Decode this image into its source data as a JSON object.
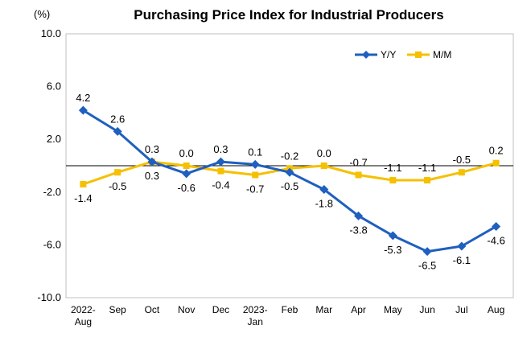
{
  "chart_data": {
    "type": "line",
    "title": "Purchasing Price Index for Industrial Producers",
    "unit": "(%)",
    "ylim": [
      -10,
      10
    ],
    "yticks": [
      "10.0",
      "6.0",
      "2.0",
      "-2.0",
      "-6.0",
      "-10.0"
    ],
    "ytick_values": [
      10,
      6,
      2,
      -2,
      -6,
      -10
    ],
    "categories": [
      [
        "2022-",
        "Aug"
      ],
      [
        "Sep"
      ],
      [
        "Oct"
      ],
      [
        "Nov"
      ],
      [
        "Dec"
      ],
      [
        "2023-",
        "Jan"
      ],
      [
        "Feb"
      ],
      [
        "Mar"
      ],
      [
        "Apr"
      ],
      [
        "May"
      ],
      [
        "Jun"
      ],
      [
        "Jul"
      ],
      [
        "Aug"
      ]
    ],
    "series": [
      {
        "name": "Y/Y",
        "color": "#1f5fbf",
        "marker": "diamond",
        "values": [
          4.2,
          2.6,
          0.3,
          -0.6,
          0.3,
          0.1,
          -0.5,
          -1.8,
          -3.8,
          -5.3,
          -6.5,
          -6.1,
          -4.6
        ],
        "labels": [
          "4.2",
          "2.6",
          "0.3",
          "-0.6",
          "0.3",
          "0.1",
          "-0.5",
          "-1.8",
          "-3.8",
          "-5.3",
          "-6.5",
          "-6.1",
          "-4.6"
        ],
        "label_pos": [
          "above",
          "above",
          "below",
          "below",
          "above",
          "above",
          "below",
          "below",
          "below",
          "below",
          "below",
          "below",
          "below"
        ]
      },
      {
        "name": "M/M",
        "color": "#f5c000",
        "marker": "square",
        "values": [
          -1.4,
          -0.5,
          0.3,
          0.0,
          -0.4,
          -0.7,
          -0.2,
          0.0,
          -0.7,
          -1.1,
          -1.1,
          -0.5,
          0.2
        ],
        "labels": [
          "-1.4",
          "-0.5",
          "0.3",
          "0.0",
          "-0.4",
          "-0.7",
          "-0.2",
          "0.0",
          "-0.7",
          "-1.1",
          "-1.1",
          "-0.5",
          "0.2"
        ],
        "label_pos": [
          "below",
          "below",
          "above",
          "above",
          "below",
          "below",
          "above",
          "above",
          "above",
          "above",
          "above",
          "above",
          "above"
        ]
      }
    ],
    "legend_position": "top-right",
    "grid": false
  }
}
